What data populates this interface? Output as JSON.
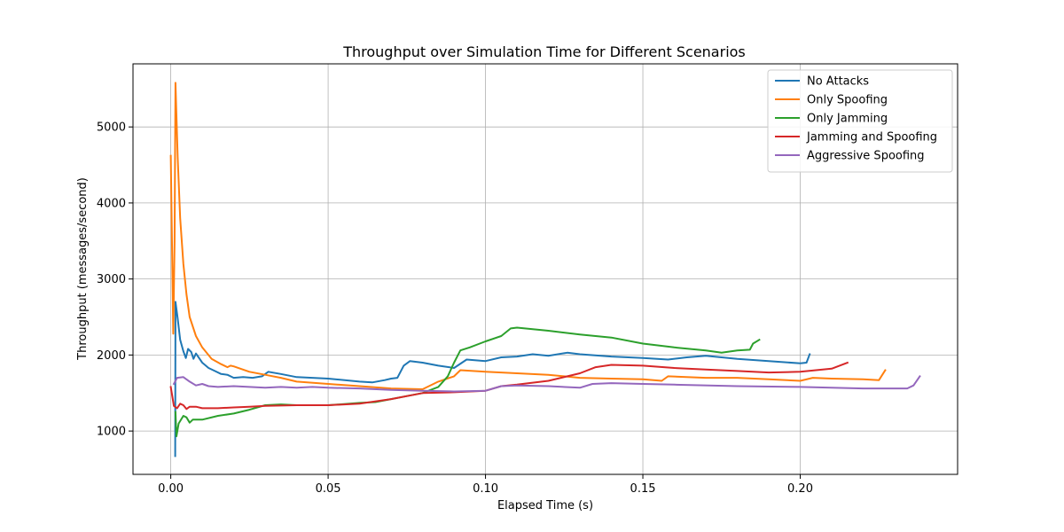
{
  "chart_data": {
    "type": "line",
    "title": "Throughput over Simulation Time for Different Scenarios",
    "xlabel": "Elapsed Time (s)",
    "ylabel": "Throughput (messages/second)",
    "xlim": [
      -0.012,
      0.25
    ],
    "ylim": [
      430,
      5830
    ],
    "x_ticks": [
      0.0,
      0.05,
      0.1,
      0.15,
      0.2
    ],
    "x_tick_labels": [
      "0.00",
      "0.05",
      "0.10",
      "0.15",
      "0.20"
    ],
    "y_ticks": [
      1000,
      2000,
      3000,
      4000,
      5000
    ],
    "y_tick_labels": [
      "1000",
      "2000",
      "3000",
      "4000",
      "5000"
    ],
    "grid": true,
    "legend_position": "top-right",
    "series": [
      {
        "name": "No Attacks",
        "color": "#1f77b4",
        "points": [
          [
            0.0014,
            670
          ],
          [
            0.0015,
            2700
          ],
          [
            0.0022,
            2480
          ],
          [
            0.003,
            2200
          ],
          [
            0.004,
            2050
          ],
          [
            0.0048,
            1960
          ],
          [
            0.0055,
            2080
          ],
          [
            0.0065,
            2040
          ],
          [
            0.0072,
            1950
          ],
          [
            0.008,
            2020
          ],
          [
            0.01,
            1900
          ],
          [
            0.012,
            1830
          ],
          [
            0.014,
            1790
          ],
          [
            0.016,
            1750
          ],
          [
            0.018,
            1740
          ],
          [
            0.02,
            1700
          ],
          [
            0.023,
            1710
          ],
          [
            0.026,
            1700
          ],
          [
            0.029,
            1720
          ],
          [
            0.031,
            1780
          ],
          [
            0.035,
            1750
          ],
          [
            0.04,
            1710
          ],
          [
            0.05,
            1690
          ],
          [
            0.06,
            1650
          ],
          [
            0.064,
            1640
          ],
          [
            0.068,
            1670
          ],
          [
            0.07,
            1690
          ],
          [
            0.072,
            1700
          ],
          [
            0.074,
            1860
          ],
          [
            0.076,
            1920
          ],
          [
            0.08,
            1900
          ],
          [
            0.085,
            1860
          ],
          [
            0.09,
            1830
          ],
          [
            0.094,
            1940
          ],
          [
            0.1,
            1920
          ],
          [
            0.105,
            1970
          ],
          [
            0.11,
            1980
          ],
          [
            0.115,
            2010
          ],
          [
            0.12,
            1990
          ],
          [
            0.126,
            2030
          ],
          [
            0.13,
            2010
          ],
          [
            0.14,
            1980
          ],
          [
            0.15,
            1960
          ],
          [
            0.158,
            1940
          ],
          [
            0.164,
            1970
          ],
          [
            0.17,
            1990
          ],
          [
            0.18,
            1950
          ],
          [
            0.19,
            1920
          ],
          [
            0.2,
            1890
          ],
          [
            0.202,
            1900
          ],
          [
            0.203,
            2010
          ]
        ]
      },
      {
        "name": "Only Spoofing",
        "color": "#ff7f0e",
        "points": [
          [
            0.0,
            4620
          ],
          [
            0.0008,
            2280
          ],
          [
            0.0012,
            3500
          ],
          [
            0.0015,
            5580
          ],
          [
            0.0022,
            4600
          ],
          [
            0.003,
            3800
          ],
          [
            0.004,
            3200
          ],
          [
            0.005,
            2800
          ],
          [
            0.006,
            2500
          ],
          [
            0.008,
            2250
          ],
          [
            0.01,
            2100
          ],
          [
            0.013,
            1950
          ],
          [
            0.016,
            1880
          ],
          [
            0.018,
            1840
          ],
          [
            0.019,
            1860
          ],
          [
            0.02,
            1850
          ],
          [
            0.025,
            1780
          ],
          [
            0.03,
            1740
          ],
          [
            0.035,
            1700
          ],
          [
            0.04,
            1650
          ],
          [
            0.05,
            1620
          ],
          [
            0.06,
            1590
          ],
          [
            0.07,
            1560
          ],
          [
            0.08,
            1550
          ],
          [
            0.085,
            1650
          ],
          [
            0.09,
            1720
          ],
          [
            0.092,
            1800
          ],
          [
            0.1,
            1780
          ],
          [
            0.11,
            1760
          ],
          [
            0.12,
            1740
          ],
          [
            0.13,
            1700
          ],
          [
            0.14,
            1690
          ],
          [
            0.15,
            1680
          ],
          [
            0.156,
            1660
          ],
          [
            0.158,
            1720
          ],
          [
            0.17,
            1700
          ],
          [
            0.18,
            1700
          ],
          [
            0.19,
            1680
          ],
          [
            0.2,
            1660
          ],
          [
            0.204,
            1700
          ],
          [
            0.21,
            1690
          ],
          [
            0.22,
            1680
          ],
          [
            0.225,
            1670
          ],
          [
            0.227,
            1800
          ]
        ]
      },
      {
        "name": "Only Jamming",
        "color": "#2ca02c",
        "points": [
          [
            0.0015,
            1250
          ],
          [
            0.0018,
            930
          ],
          [
            0.0025,
            1100
          ],
          [
            0.004,
            1200
          ],
          [
            0.005,
            1180
          ],
          [
            0.006,
            1110
          ],
          [
            0.007,
            1150
          ],
          [
            0.01,
            1150
          ],
          [
            0.015,
            1200
          ],
          [
            0.02,
            1230
          ],
          [
            0.025,
            1280
          ],
          [
            0.03,
            1340
          ],
          [
            0.035,
            1350
          ],
          [
            0.04,
            1340
          ],
          [
            0.05,
            1340
          ],
          [
            0.06,
            1370
          ],
          [
            0.065,
            1380
          ],
          [
            0.07,
            1420
          ],
          [
            0.075,
            1460
          ],
          [
            0.08,
            1500
          ],
          [
            0.085,
            1580
          ],
          [
            0.088,
            1720
          ],
          [
            0.09,
            1900
          ],
          [
            0.092,
            2060
          ],
          [
            0.095,
            2100
          ],
          [
            0.1,
            2180
          ],
          [
            0.105,
            2250
          ],
          [
            0.108,
            2350
          ],
          [
            0.11,
            2360
          ],
          [
            0.12,
            2320
          ],
          [
            0.13,
            2270
          ],
          [
            0.14,
            2230
          ],
          [
            0.15,
            2150
          ],
          [
            0.16,
            2100
          ],
          [
            0.17,
            2060
          ],
          [
            0.175,
            2030
          ],
          [
            0.18,
            2060
          ],
          [
            0.184,
            2070
          ],
          [
            0.185,
            2150
          ],
          [
            0.187,
            2200
          ]
        ]
      },
      {
        "name": "Jamming and Spoofing",
        "color": "#d62728",
        "points": [
          [
            0.0,
            1580
          ],
          [
            0.001,
            1330
          ],
          [
            0.002,
            1300
          ],
          [
            0.003,
            1360
          ],
          [
            0.004,
            1340
          ],
          [
            0.005,
            1290
          ],
          [
            0.006,
            1320
          ],
          [
            0.008,
            1320
          ],
          [
            0.01,
            1300
          ],
          [
            0.015,
            1300
          ],
          [
            0.02,
            1310
          ],
          [
            0.025,
            1320
          ],
          [
            0.03,
            1330
          ],
          [
            0.04,
            1340
          ],
          [
            0.05,
            1340
          ],
          [
            0.06,
            1360
          ],
          [
            0.07,
            1420
          ],
          [
            0.08,
            1500
          ],
          [
            0.09,
            1510
          ],
          [
            0.1,
            1530
          ],
          [
            0.105,
            1590
          ],
          [
            0.11,
            1610
          ],
          [
            0.12,
            1660
          ],
          [
            0.13,
            1760
          ],
          [
            0.135,
            1840
          ],
          [
            0.14,
            1870
          ],
          [
            0.15,
            1860
          ],
          [
            0.16,
            1830
          ],
          [
            0.17,
            1810
          ],
          [
            0.18,
            1790
          ],
          [
            0.19,
            1770
          ],
          [
            0.2,
            1780
          ],
          [
            0.205,
            1800
          ],
          [
            0.21,
            1820
          ],
          [
            0.215,
            1900
          ]
        ]
      },
      {
        "name": "Aggressive Spoofing",
        "color": "#9467bd",
        "points": [
          [
            0.001,
            1620
          ],
          [
            0.002,
            1700
          ],
          [
            0.004,
            1710
          ],
          [
            0.006,
            1650
          ],
          [
            0.008,
            1600
          ],
          [
            0.01,
            1620
          ],
          [
            0.012,
            1590
          ],
          [
            0.015,
            1580
          ],
          [
            0.02,
            1590
          ],
          [
            0.025,
            1580
          ],
          [
            0.03,
            1570
          ],
          [
            0.035,
            1580
          ],
          [
            0.04,
            1570
          ],
          [
            0.045,
            1580
          ],
          [
            0.05,
            1570
          ],
          [
            0.06,
            1560
          ],
          [
            0.07,
            1540
          ],
          [
            0.08,
            1530
          ],
          [
            0.09,
            1520
          ],
          [
            0.1,
            1530
          ],
          [
            0.105,
            1590
          ],
          [
            0.11,
            1600
          ],
          [
            0.12,
            1590
          ],
          [
            0.13,
            1570
          ],
          [
            0.134,
            1620
          ],
          [
            0.14,
            1630
          ],
          [
            0.15,
            1620
          ],
          [
            0.16,
            1610
          ],
          [
            0.18,
            1590
          ],
          [
            0.2,
            1580
          ],
          [
            0.22,
            1560
          ],
          [
            0.234,
            1560
          ],
          [
            0.236,
            1600
          ],
          [
            0.238,
            1720
          ]
        ]
      }
    ]
  }
}
